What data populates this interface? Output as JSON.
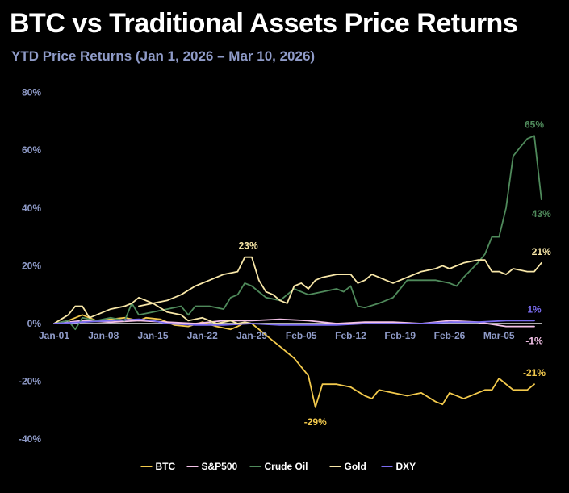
{
  "chart_data": {
    "type": "line",
    "title": "BTC vs Traditional Assets Price Returns",
    "subtitle": "YTD Price Returns (Jan 1, 2026 – Mar 10, 2026)",
    "xlabel": "",
    "ylabel": "",
    "ylim": [
      -45,
      80
    ],
    "y_ticks": [
      {
        "value": 80,
        "label": "80%"
      },
      {
        "value": 60,
        "label": "60%"
      },
      {
        "value": 40,
        "label": "40%"
      },
      {
        "value": 20,
        "label": "20%"
      },
      {
        "value": 0,
        "label": "0%"
      },
      {
        "value": -20,
        "label": "-20%"
      },
      {
        "value": -40,
        "label": "-40%"
      }
    ],
    "x_range_days": [
      0,
      68
    ],
    "x_ticks": [
      {
        "day": 0,
        "label": "Jan-01"
      },
      {
        "day": 7,
        "label": "Jan-08"
      },
      {
        "day": 14,
        "label": "Jan-15"
      },
      {
        "day": 21,
        "label": "Jan-22"
      },
      {
        "day": 28,
        "label": "Jan-29"
      },
      {
        "day": 35,
        "label": "Feb-05"
      },
      {
        "day": 42,
        "label": "Feb-12"
      },
      {
        "day": 49,
        "label": "Feb-19"
      },
      {
        "day": 56,
        "label": "Feb-26"
      },
      {
        "day": 63,
        "label": "Mar-05"
      }
    ],
    "grid": false,
    "legend_position": "bottom",
    "series": [
      {
        "name": "BTC",
        "color": "#f2c94c",
        "points": [
          [
            0,
            0
          ],
          [
            2,
            1
          ],
          [
            4,
            3
          ],
          [
            6,
            1
          ],
          [
            8,
            1.5
          ],
          [
            10,
            2
          ],
          [
            12,
            1
          ],
          [
            13,
            2
          ],
          [
            15,
            1.5
          ],
          [
            17,
            -0.5
          ],
          [
            19,
            -1
          ],
          [
            21,
            0.5
          ],
          [
            23,
            -1
          ],
          [
            25,
            -2
          ],
          [
            26,
            -1
          ],
          [
            27,
            0.3
          ],
          [
            28,
            0
          ],
          [
            30,
            -4
          ],
          [
            32,
            -8
          ],
          [
            34,
            -12
          ],
          [
            36,
            -18
          ],
          [
            37,
            -29
          ],
          [
            38,
            -21
          ],
          [
            40,
            -21
          ],
          [
            42,
            -22
          ],
          [
            44,
            -25
          ],
          [
            45,
            -26
          ],
          [
            46,
            -23
          ],
          [
            48,
            -24
          ],
          [
            50,
            -25
          ],
          [
            52,
            -24
          ],
          [
            54,
            -27
          ],
          [
            55,
            -28
          ],
          [
            56,
            -24
          ],
          [
            58,
            -26
          ],
          [
            60,
            -24
          ],
          [
            61,
            -23
          ],
          [
            62,
            -23
          ],
          [
            63,
            -19
          ],
          [
            64,
            -21
          ],
          [
            65,
            -23
          ],
          [
            67,
            -23
          ],
          [
            68,
            -21
          ]
        ]
      },
      {
        "name": "S&P500",
        "color": "#f4c2e8",
        "points": [
          [
            0,
            0
          ],
          [
            4,
            1
          ],
          [
            8,
            0.5
          ],
          [
            12,
            1
          ],
          [
            16,
            0.5
          ],
          [
            20,
            0
          ],
          [
            24,
            1
          ],
          [
            28,
            1
          ],
          [
            32,
            1.5
          ],
          [
            36,
            1
          ],
          [
            40,
            0
          ],
          [
            44,
            0.5
          ],
          [
            48,
            0.5
          ],
          [
            52,
            0
          ],
          [
            56,
            1
          ],
          [
            60,
            0.5
          ],
          [
            64,
            -1
          ],
          [
            68,
            -1
          ]
        ]
      },
      {
        "name": "Crude Oil",
        "color": "#4f8a5b",
        "points": [
          [
            0,
            0
          ],
          [
            2,
            1
          ],
          [
            3,
            -2
          ],
          [
            4,
            2
          ],
          [
            6,
            1
          ],
          [
            8,
            2
          ],
          [
            10,
            1
          ],
          [
            11,
            7
          ],
          [
            12,
            3
          ],
          [
            14,
            4
          ],
          [
            16,
            5
          ],
          [
            18,
            6
          ],
          [
            19,
            3
          ],
          [
            20,
            6
          ],
          [
            22,
            6
          ],
          [
            24,
            5
          ],
          [
            25,
            9
          ],
          [
            26,
            10
          ],
          [
            27,
            14
          ],
          [
            28,
            13
          ],
          [
            30,
            9
          ],
          [
            32,
            8
          ],
          [
            34,
            12
          ],
          [
            36,
            10
          ],
          [
            38,
            11
          ],
          [
            40,
            12
          ],
          [
            41,
            11
          ],
          [
            42,
            13
          ],
          [
            43,
            6
          ],
          [
            44,
            5.5
          ],
          [
            46,
            7
          ],
          [
            48,
            9
          ],
          [
            49,
            12
          ],
          [
            50,
            15
          ],
          [
            52,
            15
          ],
          [
            54,
            15
          ],
          [
            56,
            14
          ],
          [
            57,
            13
          ],
          [
            58,
            16
          ],
          [
            60,
            21
          ],
          [
            61,
            24
          ],
          [
            62,
            30
          ],
          [
            63,
            30
          ],
          [
            64,
            40
          ],
          [
            65,
            58
          ],
          [
            66,
            61
          ],
          [
            67,
            64
          ],
          [
            68,
            65
          ],
          [
            69,
            43
          ]
        ]
      },
      {
        "name": "Gold",
        "color": "#f8e7a8",
        "points": [
          [
            0,
            0
          ],
          [
            2,
            3
          ],
          [
            3,
            6
          ],
          [
            4,
            6
          ],
          [
            5,
            2
          ],
          [
            6,
            3
          ],
          [
            8,
            5
          ],
          [
            10,
            6
          ],
          [
            11,
            7
          ],
          [
            12,
            9
          ],
          [
            13,
            8
          ],
          [
            14,
            7
          ],
          [
            16,
            4
          ],
          [
            18,
            3
          ],
          [
            19,
            1
          ],
          [
            21,
            2
          ],
          [
            22,
            1
          ],
          [
            23,
            0
          ],
          [
            25,
            1
          ],
          [
            26,
            0
          ],
          [
            27,
            0.5
          ],
          [
            28,
            0
          ]
        ]
      },
      {
        "name": "Gold (from Jan-15)",
        "legend": false,
        "color": "#f8e7a8",
        "points": [
          [
            12,
            6
          ],
          [
            14,
            7
          ],
          [
            16,
            8
          ],
          [
            18,
            10
          ],
          [
            20,
            13
          ],
          [
            22,
            15
          ],
          [
            24,
            17
          ],
          [
            26,
            18
          ],
          [
            27,
            23
          ],
          [
            28,
            23
          ],
          [
            29,
            15
          ],
          [
            30,
            11
          ],
          [
            31,
            10
          ],
          [
            32,
            8
          ],
          [
            33,
            7
          ],
          [
            34,
            13
          ],
          [
            35,
            14
          ],
          [
            36,
            12
          ],
          [
            37,
            15
          ],
          [
            38,
            16
          ],
          [
            40,
            17
          ],
          [
            42,
            17
          ],
          [
            43,
            14
          ],
          [
            44,
            15
          ],
          [
            45,
            17
          ],
          [
            47,
            15
          ],
          [
            48,
            14
          ],
          [
            50,
            16
          ],
          [
            52,
            18
          ],
          [
            54,
            19
          ],
          [
            55,
            20
          ],
          [
            56,
            19
          ],
          [
            58,
            21
          ],
          [
            60,
            22
          ],
          [
            61,
            22
          ],
          [
            62,
            18
          ],
          [
            63,
            18
          ],
          [
            64,
            17
          ],
          [
            65,
            19
          ],
          [
            67,
            18
          ],
          [
            68,
            18
          ],
          [
            69,
            21
          ]
        ]
      },
      {
        "name": "DXY",
        "color": "#7b6cf0",
        "points": [
          [
            0,
            0
          ],
          [
            4,
            0.5
          ],
          [
            8,
            1
          ],
          [
            12,
            1.5
          ],
          [
            14,
            1
          ],
          [
            16,
            0
          ],
          [
            20,
            -0.5
          ],
          [
            24,
            -0.5
          ],
          [
            28,
            0
          ],
          [
            32,
            -0.5
          ],
          [
            36,
            -0.5
          ],
          [
            40,
            -0.5
          ],
          [
            44,
            0
          ],
          [
            48,
            0
          ],
          [
            52,
            0
          ],
          [
            56,
            0.5
          ],
          [
            60,
            0.5
          ],
          [
            64,
            1
          ],
          [
            68,
            1
          ]
        ]
      }
    ],
    "annotations": [
      {
        "text": "23%",
        "series": "Gold",
        "day": 27.5,
        "value": 23,
        "pos": "above",
        "color": "#f8e7a8"
      },
      {
        "text": "-29%",
        "series": "BTC",
        "day": 37,
        "value": -29,
        "pos": "below",
        "color": "#f2c94c"
      },
      {
        "text": "65%",
        "series": "Crude Oil",
        "day": 68,
        "value": 65,
        "pos": "above",
        "color": "#4f8a5b"
      },
      {
        "text": "43%",
        "series": "Crude Oil",
        "day": 69,
        "value": 43,
        "pos": "below",
        "color": "#4f8a5b"
      },
      {
        "text": "21%",
        "series": "Gold",
        "day": 69,
        "value": 21,
        "pos": "above",
        "color": "#f8e7a8"
      },
      {
        "text": "1%",
        "series": "DXY",
        "day": 68,
        "value": 1,
        "pos": "above",
        "color": "#7b6cf0"
      },
      {
        "text": "-1%",
        "series": "S&P500",
        "day": 68,
        "value": -1,
        "pos": "below",
        "color": "#f4c2e8"
      },
      {
        "text": "-21%",
        "series": "BTC",
        "day": 68,
        "value": -21,
        "pos": "above",
        "color": "#f2c94c"
      }
    ],
    "legend": [
      {
        "label": "BTC",
        "color": "#f2c94c"
      },
      {
        "label": "S&P500",
        "color": "#f4c2e8"
      },
      {
        "label": "Crude Oil",
        "color": "#4f8a5b"
      },
      {
        "label": "Gold",
        "color": "#f8e7a8"
      },
      {
        "label": "DXY",
        "color": "#7b6cf0"
      }
    ]
  }
}
